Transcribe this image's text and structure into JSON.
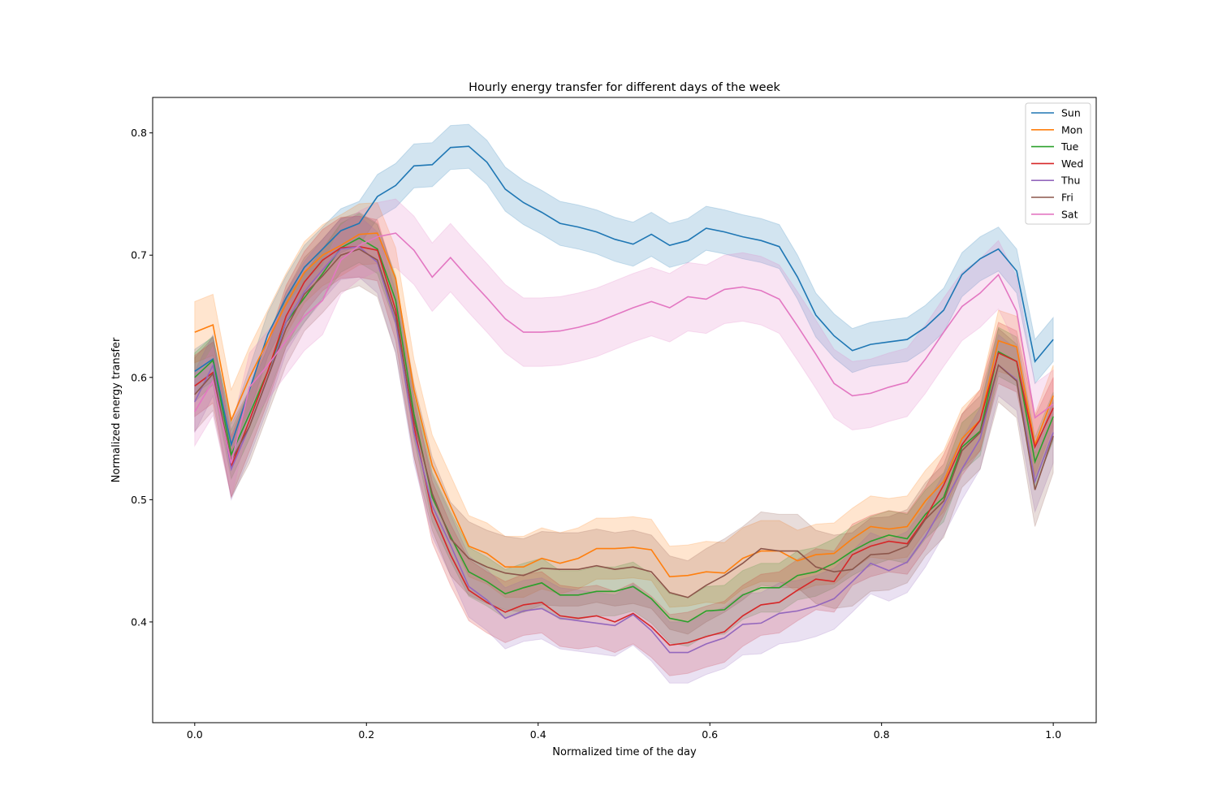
{
  "chart_data": {
    "type": "line",
    "title": "Hourly energy transfer for different days of the week",
    "xlabel": "Normalized time of the day",
    "ylabel": "Normalized energy transfer",
    "xlim": [
      -0.049,
      1.05
    ],
    "ylim": [
      0.3176,
      0.829
    ],
    "xticks": [
      0.0,
      0.2,
      0.4,
      0.6,
      0.8,
      1.0
    ],
    "xtick_labels": [
      "0.0",
      "0.2",
      "0.4",
      "0.6",
      "0.8",
      "1.0"
    ],
    "yticks": [
      0.4,
      0.5,
      0.6,
      0.7,
      0.8
    ],
    "ytick_labels": [
      "0.4",
      "0.5",
      "0.6",
      "0.7",
      "0.8"
    ],
    "grid": false,
    "legend_position": "top-right",
    "x_points": 48,
    "x_range": [
      0,
      1
    ],
    "series": [
      {
        "name": "Sun",
        "color": "#1f77b4",
        "ci_halfwidth": 0.018,
        "values": [
          0.605,
          0.615,
          0.545,
          0.59,
          0.635,
          0.665,
          0.69,
          0.705,
          0.72,
          0.726,
          0.748,
          0.757,
          0.773,
          0.774,
          0.788,
          0.789,
          0.776,
          0.754,
          0.743,
          0.735,
          0.726,
          0.723,
          0.719,
          0.713,
          0.709,
          0.717,
          0.708,
          0.712,
          0.722,
          0.719,
          0.715,
          0.712,
          0.707,
          0.682,
          0.651,
          0.634,
          0.622,
          0.627,
          0.629,
          0.631,
          0.641,
          0.655,
          0.684,
          0.697,
          0.705,
          0.687,
          0.613,
          0.631
        ]
      },
      {
        "name": "Mon",
        "color": "#ff7f0e",
        "ci_halfwidth": 0.025,
        "values": [
          0.637,
          0.643,
          0.565,
          0.6,
          0.63,
          0.66,
          0.686,
          0.7,
          0.708,
          0.717,
          0.718,
          0.681,
          0.59,
          0.528,
          0.495,
          0.462,
          0.456,
          0.445,
          0.445,
          0.452,
          0.448,
          0.452,
          0.46,
          0.46,
          0.461,
          0.459,
          0.437,
          0.438,
          0.441,
          0.44,
          0.452,
          0.458,
          0.458,
          0.45,
          0.455,
          0.456,
          0.468,
          0.478,
          0.476,
          0.478,
          0.499,
          0.515,
          0.55,
          0.565,
          0.63,
          0.625,
          0.545,
          0.585
        ]
      },
      {
        "name": "Tue",
        "color": "#2ca02c",
        "ci_halfwidth": 0.02,
        "values": [
          0.6,
          0.614,
          0.537,
          0.57,
          0.605,
          0.645,
          0.665,
          0.685,
          0.706,
          0.714,
          0.705,
          0.663,
          0.57,
          0.502,
          0.47,
          0.441,
          0.433,
          0.423,
          0.428,
          0.432,
          0.422,
          0.422,
          0.425,
          0.425,
          0.429,
          0.419,
          0.403,
          0.4,
          0.409,
          0.41,
          0.422,
          0.428,
          0.428,
          0.438,
          0.441,
          0.448,
          0.458,
          0.466,
          0.471,
          0.468,
          0.488,
          0.502,
          0.543,
          0.556,
          0.621,
          0.613,
          0.531,
          0.568
        ]
      },
      {
        "name": "Wed",
        "color": "#d62728",
        "ci_halfwidth": 0.025,
        "values": [
          0.593,
          0.604,
          0.527,
          0.565,
          0.605,
          0.65,
          0.678,
          0.696,
          0.706,
          0.707,
          0.704,
          0.655,
          0.56,
          0.49,
          0.455,
          0.426,
          0.416,
          0.408,
          0.414,
          0.416,
          0.405,
          0.403,
          0.405,
          0.4,
          0.407,
          0.396,
          0.381,
          0.383,
          0.388,
          0.392,
          0.405,
          0.414,
          0.416,
          0.426,
          0.435,
          0.433,
          0.455,
          0.462,
          0.466,
          0.464,
          0.485,
          0.512,
          0.545,
          0.565,
          0.62,
          0.613,
          0.543,
          0.575
        ]
      },
      {
        "name": "Thu",
        "color": "#9467bd",
        "ci_halfwidth": 0.025,
        "values": [
          0.58,
          0.61,
          0.525,
          0.56,
          0.6,
          0.645,
          0.67,
          0.688,
          0.705,
          0.707,
          0.694,
          0.645,
          0.555,
          0.495,
          0.463,
          0.429,
          0.418,
          0.403,
          0.409,
          0.411,
          0.403,
          0.401,
          0.399,
          0.397,
          0.406,
          0.393,
          0.375,
          0.375,
          0.382,
          0.387,
          0.398,
          0.399,
          0.407,
          0.409,
          0.413,
          0.419,
          0.433,
          0.448,
          0.442,
          0.449,
          0.47,
          0.496,
          0.525,
          0.55,
          0.61,
          0.598,
          0.515,
          0.555
        ]
      },
      {
        "name": "Fri",
        "color": "#8c564b",
        "ci_halfwidth": 0.03,
        "values": [
          0.586,
          0.603,
          0.532,
          0.56,
          0.6,
          0.64,
          0.668,
          0.683,
          0.7,
          0.705,
          0.696,
          0.65,
          0.565,
          0.505,
          0.468,
          0.452,
          0.445,
          0.44,
          0.438,
          0.444,
          0.443,
          0.443,
          0.446,
          0.443,
          0.445,
          0.441,
          0.424,
          0.42,
          0.43,
          0.438,
          0.448,
          0.46,
          0.458,
          0.458,
          0.445,
          0.441,
          0.443,
          0.455,
          0.456,
          0.462,
          0.484,
          0.499,
          0.54,
          0.555,
          0.61,
          0.597,
          0.508,
          0.552
        ]
      },
      {
        "name": "Sat",
        "color": "#e377c2",
        "ci_halfwidth": 0.028,
        "values": [
          0.572,
          0.597,
          0.53,
          0.592,
          0.61,
          0.63,
          0.65,
          0.663,
          0.696,
          0.708,
          0.715,
          0.718,
          0.704,
          0.682,
          0.698,
          0.681,
          0.665,
          0.648,
          0.637,
          0.637,
          0.638,
          0.641,
          0.645,
          0.651,
          0.657,
          0.662,
          0.657,
          0.666,
          0.664,
          0.672,
          0.674,
          0.671,
          0.664,
          0.642,
          0.619,
          0.595,
          0.585,
          0.587,
          0.592,
          0.596,
          0.615,
          0.637,
          0.658,
          0.669,
          0.684,
          0.654,
          0.567,
          0.578
        ]
      }
    ]
  }
}
